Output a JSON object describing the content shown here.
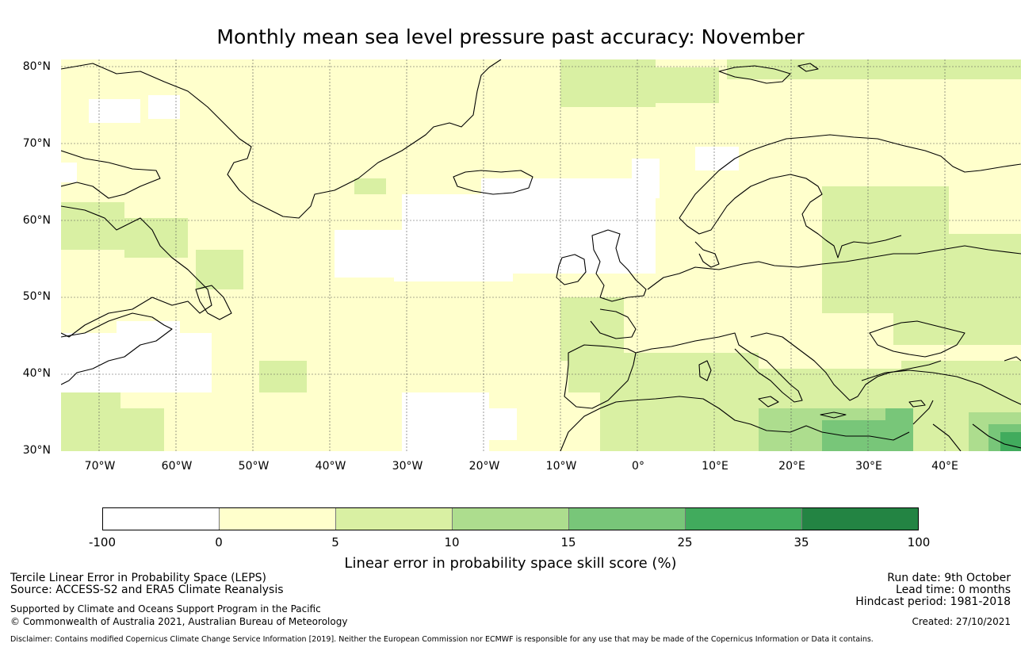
{
  "title": "Monthly mean sea level pressure past accuracy: November",
  "map": {
    "lat_labels": [
      "80°N",
      "70°N",
      "60°N",
      "50°N",
      "40°N",
      "30°N"
    ],
    "lon_labels": [
      "70°W",
      "60°W",
      "50°W",
      "40°W",
      "30°W",
      "20°W",
      "10°W",
      "0°",
      "10°E",
      "20°E",
      "30°E",
      "40°E"
    ],
    "lat_range": [
      30,
      81
    ],
    "lon_range": [
      -75,
      50
    ]
  },
  "colorbar": {
    "ticks": [
      "-100",
      "0",
      "5",
      "10",
      "15",
      "25",
      "35",
      "100"
    ],
    "colors": [
      "#ffffff",
      "#ffffcc",
      "#d9f0a3",
      "#addd8e",
      "#78c679",
      "#41ab5d",
      "#238443"
    ],
    "label": "Linear error in probability space skill score (%)"
  },
  "footer": {
    "method": "Tercile Linear Error in Probability Space (LEPS)",
    "source": "Source: ACCESS-S2 and ERA5 Climate Reanalysis",
    "support": "Supported by Climate and Oceans Support Program in the Pacific",
    "copyright": "© Commonwealth of Australia 2021, Australian Bureau of Meteorology",
    "disclaimer": "Disclaimer: Contains modified Copernicus Climate Change Service Information [2019]. Neither the European Commission nor ECMWF is responsible for any use that may be made of the Copernicus Information or Data it contains.",
    "run_date": "Run date: 9th October",
    "lead_time": "Lead time: 0 months",
    "hindcast": "Hindcast period: 1981-2018",
    "created": "Created: 27/10/2021"
  }
}
